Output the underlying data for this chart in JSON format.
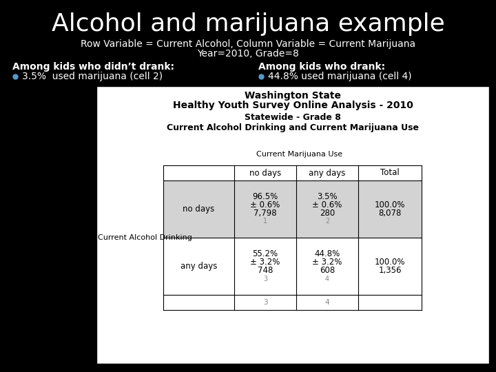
{
  "title": "Alcohol and marijuana example",
  "subtitle1": "Row Variable = Current Alcohol, Column Variable = Current Marijuana",
  "subtitle2": "Year=2010, Grade=8",
  "left_heading": "Among kids who didn’t drank:",
  "left_bullet": "3.5%  used marijuana (cell 2)",
  "right_heading": "Among kids who drank:",
  "right_bullet": "44.8% used marijuana (cell 4)",
  "table_title1": "Washington State",
  "table_title2": "Healthy Youth Survey Online Analysis - 2010",
  "table_title3": "Statewide - Grade 8",
  "table_title4": "Current Alcohol Drinking and Current Marijuana Use",
  "col_header_label": "Current Marijuana Use",
  "col_headers": [
    "no days",
    "any days",
    "Total"
  ],
  "row_label": "Current Alcohol Drinking",
  "row_headers": [
    "no days",
    "any days"
  ],
  "cell_data": [
    [
      "96.5%\n± 0.6%\n7,798\n1",
      "3.5%\n± 0.6%\n280\n2",
      "100.0%\n\n8,078"
    ],
    [
      "55.2%\n± 3.2%\n748\n3",
      "44.8%\n± 3.2%\n608\n4",
      "100.0%\n\n1,356"
    ]
  ],
  "bg_color": "#000000",
  "title_color": "#ffffff",
  "subtitle_color": "#ffffff",
  "heading_color": "#ffffff",
  "table_bg": "#ffffff",
  "cell_shaded_bg": "#d3d3d3",
  "cell_white_bg": "#ffffff",
  "bullet_color": "#5599cc",
  "black": "#000000",
  "gray_text": "#888888"
}
